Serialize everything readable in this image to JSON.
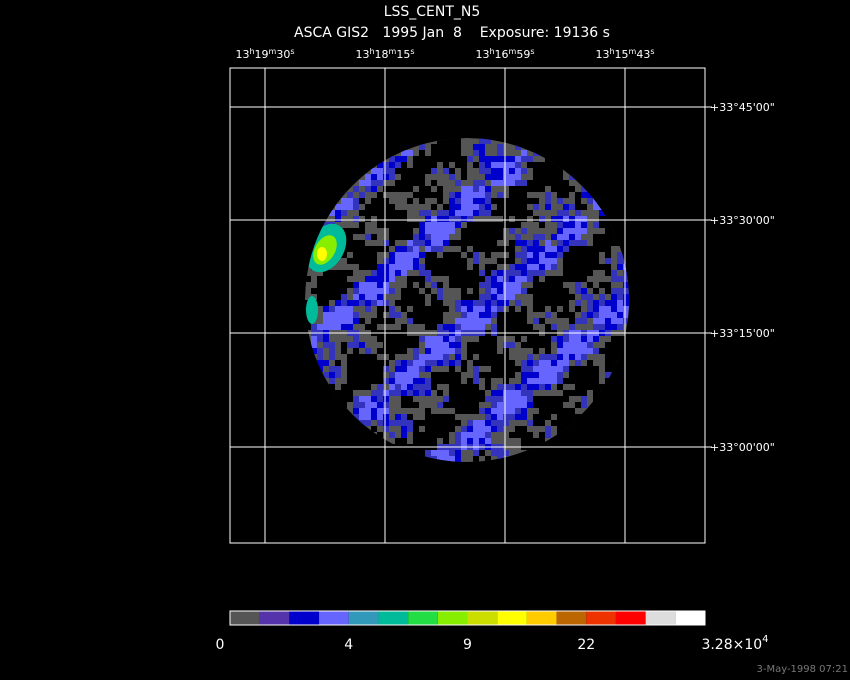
{
  "header": {
    "title": "LSS_CENT_N5",
    "subtitle": "ASCA GIS2   1995 Jan  8    Exposure: 19136 s"
  },
  "ra_labels": [
    [
      "13",
      "h",
      "19",
      "m",
      "30",
      "s"
    ],
    [
      "13",
      "h",
      "18",
      "m",
      "15",
      "s"
    ],
    [
      "13",
      "h",
      "16",
      "m",
      "59",
      "s"
    ],
    [
      "13",
      "h",
      "15",
      "m",
      "43",
      "s"
    ]
  ],
  "dec_labels": [
    "+33°45'00\"",
    "+33°30'00\"",
    "+33°15'00\"",
    "+33°00'00\""
  ],
  "colorbar": {
    "colors": [
      "#555555",
      "#5533aa",
      "#0000cc",
      "#6666ff",
      "#3399bb",
      "#00bb99",
      "#22dd44",
      "#88ee00",
      "#ccdd00",
      "#ffff00",
      "#ffcc00",
      "#bb6600",
      "#ee3300",
      "#ff0000",
      "#dddddd",
      "#ffffff"
    ],
    "ticks": [
      [
        "0"
      ],
      [
        "4"
      ],
      [
        "9"
      ],
      [
        "22"
      ],
      [
        "3.28×10",
        "4"
      ]
    ]
  },
  "footer": "3-May-1998 07:21"
}
